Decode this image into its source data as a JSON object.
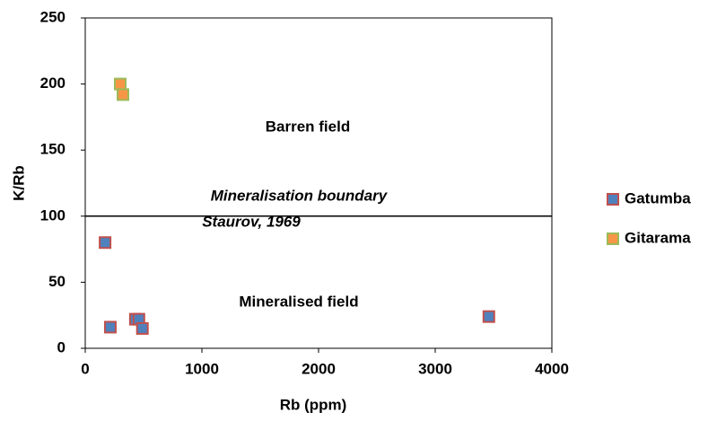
{
  "chart_data": {
    "type": "scatter",
    "x_label": "Rb (ppm)",
    "y_label": "K/Rb",
    "xlim": [
      0,
      4000
    ],
    "xticks": [
      0,
      1000,
      2000,
      3000,
      4000
    ],
    "ylim": [
      0,
      250
    ],
    "yticks": [
      0,
      50,
      100,
      150,
      200,
      250
    ],
    "boundary": 100,
    "annotations": [
      "Barren field",
      "Mineralisation boundary",
      "Staurov, 1969",
      "Mineralised field"
    ],
    "legend": "right",
    "series": [
      {
        "name": "Gatumba",
        "color": "#4f81bd",
        "edgecolor": "#c0504d",
        "x": [
          170,
          215,
          430,
          460,
          490,
          3460
        ],
        "values": [
          80,
          16,
          22,
          22,
          15,
          24
        ]
      },
      {
        "name": "Gitarama",
        "color": "#f79646",
        "edgecolor": "#9bbb59",
        "x": [
          300,
          323
        ],
        "values": [
          200,
          192
        ]
      }
    ]
  }
}
